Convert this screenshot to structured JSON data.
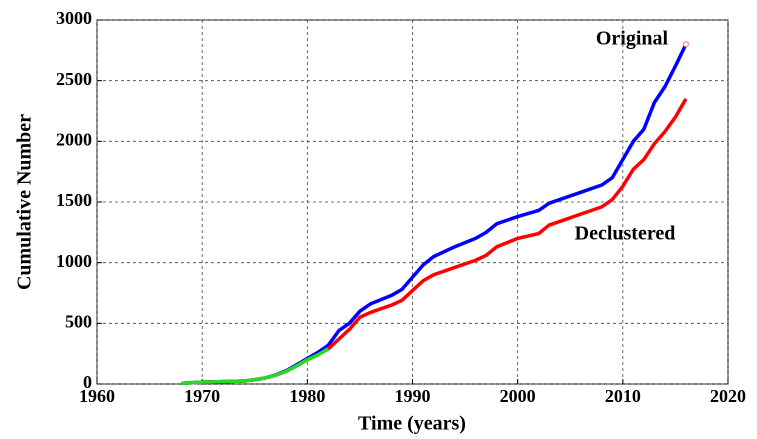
{
  "chart_data": {
    "type": "line",
    "xlabel": "Time (years)",
    "ylabel": "Cumulative Number",
    "x": [
      1968,
      1970,
      1972,
      1974,
      1975,
      1976,
      1977,
      1978,
      1979,
      1980,
      1981,
      1982,
      1983,
      1984,
      1985,
      1986,
      1988,
      1989,
      1990,
      1991,
      1992,
      1994,
      1996,
      1997,
      1998,
      2000,
      2002,
      2003,
      2004,
      2006,
      2008,
      2009,
      2010,
      2011,
      2012,
      2013,
      2014,
      2015,
      2016
    ],
    "series": [
      {
        "name": "Original",
        "color": "#0000ff",
        "end_marker_color": "#e87090",
        "values": [
          5,
          15,
          20,
          25,
          35,
          50,
          75,
          110,
          160,
          210,
          260,
          320,
          440,
          500,
          600,
          660,
          730,
          780,
          880,
          980,
          1050,
          1130,
          1200,
          1250,
          1320,
          1380,
          1430,
          1490,
          1520,
          1580,
          1640,
          1700,
          1850,
          2000,
          2100,
          2320,
          2450,
          2620,
          2800
        ]
      },
      {
        "name": "Declustered",
        "color": "#ff0000",
        "values": [
          5,
          15,
          20,
          25,
          35,
          50,
          72,
          105,
          150,
          200,
          240,
          290,
          370,
          450,
          550,
          590,
          650,
          690,
          770,
          850,
          900,
          960,
          1020,
          1060,
          1130,
          1200,
          1240,
          1310,
          1340,
          1400,
          1460,
          1520,
          1630,
          1770,
          1850,
          1980,
          2080,
          2200,
          2350
        ]
      },
      {
        "color": "#22dd22",
        "values": [
          5,
          15,
          20,
          25,
          35,
          50,
          72,
          105,
          150,
          200,
          240,
          290,
          null,
          null,
          null,
          null,
          null,
          null,
          null,
          null,
          null,
          null,
          null,
          null,
          null,
          null,
          null,
          null,
          null,
          null,
          null,
          null,
          null,
          null,
          null,
          null,
          null,
          null,
          null
        ]
      }
    ],
    "xlim": [
      1960,
      2020
    ],
    "xticks": [
      1960,
      1970,
      1980,
      1990,
      2000,
      2010,
      2020
    ],
    "ylim": [
      0,
      3000
    ],
    "yticks": [
      0,
      500,
      1000,
      1500,
      2000,
      2500,
      3000
    ],
    "grid": true
  }
}
